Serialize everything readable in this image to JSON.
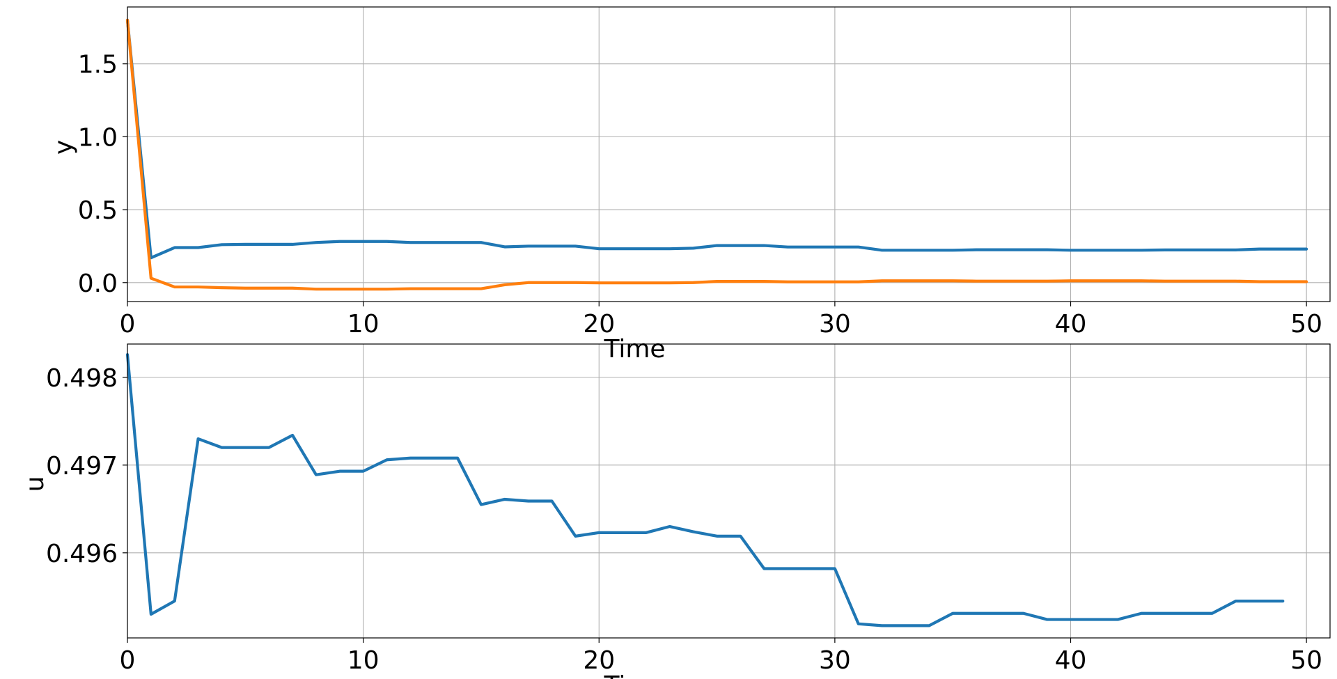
{
  "chart_data": [
    {
      "type": "line",
      "xlabel": "Time",
      "ylabel": "y",
      "xlim": [
        0,
        51
      ],
      "ylim": [
        -0.13,
        1.89
      ],
      "xticks": [
        0,
        10,
        20,
        30,
        40,
        50
      ],
      "yticks": [
        0.0,
        0.5,
        1.0,
        1.5
      ],
      "grid": true,
      "series": [
        {
          "color": "#1f77b4",
          "x": [
            0,
            1,
            2,
            3,
            4,
            5,
            6,
            7,
            8,
            9,
            10,
            11,
            12,
            13,
            14,
            15,
            16,
            17,
            18,
            19,
            20,
            21,
            22,
            23,
            24,
            25,
            26,
            27,
            28,
            29,
            30,
            31,
            32,
            33,
            34,
            35,
            36,
            37,
            38,
            39,
            40,
            41,
            42,
            43,
            44,
            45,
            46,
            47,
            48,
            49,
            50
          ],
          "values": [
            1.8,
            0.17,
            0.24,
            0.24,
            0.26,
            0.262,
            0.262,
            0.262,
            0.275,
            0.282,
            0.282,
            0.282,
            0.275,
            0.275,
            0.275,
            0.275,
            0.245,
            0.25,
            0.25,
            0.25,
            0.232,
            0.232,
            0.232,
            0.232,
            0.236,
            0.254,
            0.254,
            0.254,
            0.244,
            0.244,
            0.244,
            0.244,
            0.222,
            0.222,
            0.222,
            0.222,
            0.225,
            0.225,
            0.225,
            0.225,
            0.222,
            0.222,
            0.222,
            0.222,
            0.224,
            0.224,
            0.224,
            0.224,
            0.23,
            0.23,
            0.23
          ]
        },
        {
          "color": "#ff7f0e",
          "x": [
            0,
            1,
            2,
            3,
            4,
            5,
            6,
            7,
            8,
            9,
            10,
            11,
            12,
            13,
            14,
            15,
            16,
            17,
            18,
            19,
            20,
            21,
            22,
            23,
            24,
            25,
            26,
            27,
            28,
            29,
            30,
            31,
            32,
            33,
            34,
            35,
            36,
            37,
            38,
            39,
            40,
            41,
            42,
            43,
            44,
            45,
            46,
            47,
            48,
            49,
            50
          ],
          "values": [
            1.8,
            0.03,
            -0.03,
            -0.03,
            -0.035,
            -0.038,
            -0.038,
            -0.038,
            -0.045,
            -0.045,
            -0.045,
            -0.045,
            -0.042,
            -0.042,
            -0.042,
            -0.042,
            -0.015,
            0.0,
            0.0,
            0.0,
            -0.002,
            -0.002,
            -0.002,
            -0.002,
            0.0,
            0.008,
            0.008,
            0.008,
            0.005,
            0.005,
            0.005,
            0.005,
            0.012,
            0.012,
            0.012,
            0.012,
            0.01,
            0.01,
            0.01,
            0.01,
            0.012,
            0.012,
            0.012,
            0.012,
            0.01,
            0.01,
            0.01,
            0.01,
            0.006,
            0.006,
            0.006
          ]
        }
      ]
    },
    {
      "type": "line",
      "xlabel": "Time",
      "ylabel": "u",
      "xlim": [
        0,
        51
      ],
      "ylim": [
        0.49503,
        0.49838
      ],
      "xticks": [
        0,
        10,
        20,
        30,
        40,
        50
      ],
      "yticks": [
        0.496,
        0.497,
        0.498
      ],
      "ytick_labels": [
        "0.496",
        "0.497",
        "0.498"
      ],
      "grid": true,
      "series": [
        {
          "color": "#1f77b4",
          "x": [
            0,
            1,
            2,
            3,
            4,
            5,
            6,
            7,
            8,
            9,
            10,
            11,
            12,
            13,
            14,
            15,
            16,
            17,
            18,
            19,
            20,
            21,
            22,
            23,
            24,
            25,
            26,
            27,
            28,
            29,
            30,
            31,
            32,
            33,
            34,
            35,
            36,
            37,
            38,
            39,
            40,
            41,
            42,
            43,
            44,
            45,
            46,
            47,
            48,
            49
          ],
          "values": [
            0.49826,
            0.4953,
            0.49545,
            0.4973,
            0.4972,
            0.4972,
            0.4972,
            0.49734,
            0.49689,
            0.49693,
            0.49693,
            0.49706,
            0.49708,
            0.49708,
            0.49708,
            0.49655,
            0.49661,
            0.49659,
            0.49659,
            0.49619,
            0.49623,
            0.49623,
            0.49623,
            0.4963,
            0.49624,
            0.49619,
            0.49619,
            0.49582,
            0.49582,
            0.49582,
            0.49582,
            0.49519,
            0.49517,
            0.49517,
            0.49517,
            0.49531,
            0.49531,
            0.49531,
            0.49531,
            0.49524,
            0.49524,
            0.49524,
            0.49524,
            0.49531,
            0.49531,
            0.49531,
            0.49531,
            0.49545,
            0.49545,
            0.49545
          ]
        }
      ]
    }
  ]
}
